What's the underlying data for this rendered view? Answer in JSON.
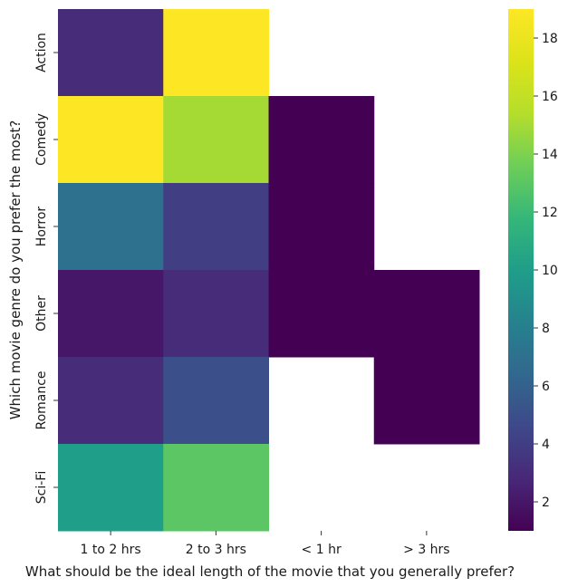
{
  "chart_data": {
    "type": "heatmap",
    "title": "",
    "xlabel": "What should be the ideal length of the movie that you generally prefer?",
    "ylabel": "Which movie genre do you prefer the most?",
    "x_categories": [
      "1 to 2 hrs",
      "2 to 3 hrs",
      "< 1 hr",
      "> 3 hrs"
    ],
    "y_categories": [
      "Action",
      "Comedy",
      "Horror",
      "Other",
      "Romance",
      "Sci-Fi"
    ],
    "values": [
      [
        3,
        19,
        null,
        null
      ],
      [
        19,
        15,
        1,
        null
      ],
      [
        7,
        4,
        1,
        null
      ],
      [
        2,
        3,
        1,
        1
      ],
      [
        3,
        5,
        null,
        1
      ],
      [
        10,
        13,
        null,
        null
      ]
    ],
    "colormap": "viridis",
    "color_range": [
      1,
      19
    ],
    "colorbar_ticks": [
      "2",
      "4",
      "6",
      "8",
      "10",
      "12",
      "14",
      "16",
      "18"
    ],
    "missing_color": "#ffffff"
  }
}
